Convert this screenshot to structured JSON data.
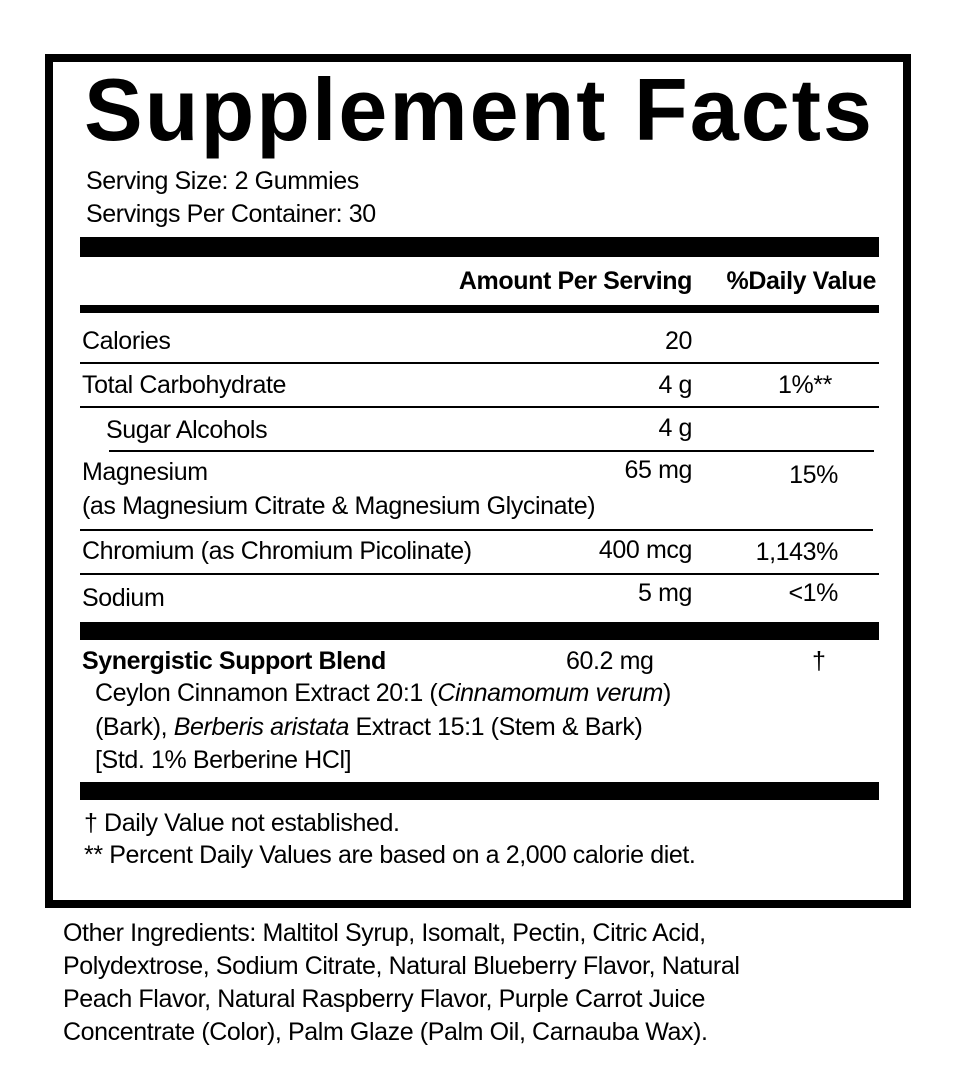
{
  "title": "Supplement Facts",
  "serving_size": "Serving Size: 2 Gummies",
  "servings_per_container": "Servings Per Container: 30",
  "headers": {
    "amount": "Amount Per Serving",
    "dv": "%Daily Value"
  },
  "rows": [
    {
      "name": "Calories",
      "amount": "20",
      "dv": ""
    },
    {
      "name": "Total Carbohydrate",
      "amount": "4 g",
      "dv": "1%**"
    },
    {
      "name": "Sugar Alcohols",
      "amount": "4 g",
      "dv": ""
    },
    {
      "name": "Magnesium",
      "sub": "(as Magnesium Citrate & Magnesium Glycinate)",
      "amount": "65 mg",
      "dv": "15%"
    },
    {
      "name": "Chromium (as Chromium Picolinate)",
      "amount": "400 mcg",
      "dv": "1,143%"
    },
    {
      "name": "Sodium",
      "amount": "5 mg",
      "dv": "<1%"
    }
  ],
  "blend": {
    "name": "Synergistic Support Blend",
    "amount": "60.2 mg",
    "dv": "†",
    "line1a": "Ceylon Cinnamon Extract 20:1 (",
    "line1i": "Cinnamomum verum",
    "line1b": ")",
    "line2a": "(Bark), ",
    "line2i": "Berberis aristata",
    "line2b": " Extract 15:1 (Stem & Bark)",
    "line3": "[Std. 1% Berberine HCl]"
  },
  "footnotes": [
    "† Daily Value not established.",
    "** Percent Daily Values are based on a 2,000 calorie diet."
  ],
  "other_ingredients": [
    "Other Ingredients: Maltitol Syrup, Isomalt, Pectin, Citric Acid,",
    "Polydextrose, Sodium Citrate, Natural Blueberry Flavor, Natural",
    "Peach Flavor, Natural Raspberry Flavor, Purple Carrot Juice",
    "Concentrate (Color), Palm Glaze (Palm Oil, Carnauba Wax)."
  ]
}
